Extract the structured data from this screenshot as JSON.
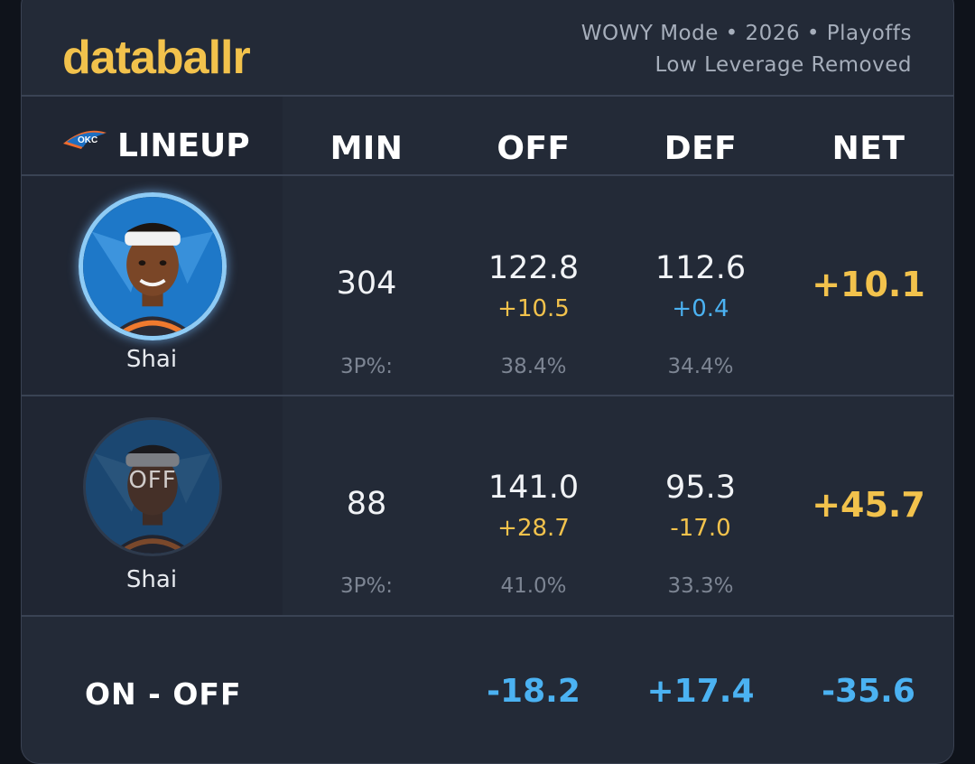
{
  "brand": "databallr",
  "meta": {
    "line1": "WOWY Mode • 2026 • Playoffs",
    "line2": "Low Leverage Removed"
  },
  "team_logo_text": "OKC",
  "headers": {
    "lineup": "LINEUP",
    "min": "MIN",
    "off": "OFF",
    "def": "DEF",
    "net": "NET"
  },
  "rows": [
    {
      "player": "Shai",
      "status": "",
      "min": "304",
      "off": "122.8",
      "off_delta": "+10.5",
      "def": "112.6",
      "def_delta": "+0.4",
      "net": "+10.1",
      "three_label": "3P%:",
      "off_3p": "38.4%",
      "def_3p": "34.4%"
    },
    {
      "player": "Shai",
      "status": "OFF",
      "min": "88",
      "off": "141.0",
      "off_delta": "+28.7",
      "def": "95.3",
      "def_delta": "-17.0",
      "net": "+45.7",
      "three_label": "3P%:",
      "off_3p": "41.0%",
      "def_3p": "33.3%"
    }
  ],
  "on_off": {
    "label": "ON - OFF",
    "off": "-18.2",
    "def": "+17.4",
    "net": "-35.6"
  },
  "colors": {
    "gold": "#f2c24c",
    "blue": "#4bb2f2",
    "card_bg": "#232a37"
  }
}
